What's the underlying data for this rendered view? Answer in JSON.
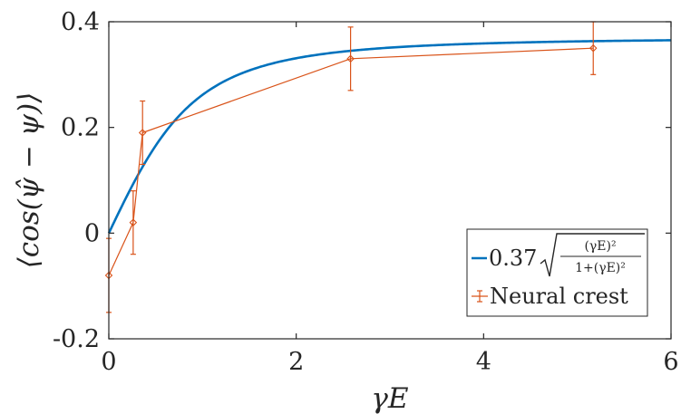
{
  "chart_data": {
    "type": "line",
    "xlabel": "γE",
    "ylabel": "⟨cos(ψ̂ − ψ)⟩",
    "xlim": [
      0,
      6
    ],
    "ylim": [
      -0.2,
      0.4
    ],
    "x_ticks": [
      0,
      2,
      4,
      6
    ],
    "x_tick_labels": [
      "0",
      "2",
      "4",
      "6"
    ],
    "y_ticks": [
      -0.2,
      0,
      0.2,
      0.4
    ],
    "y_tick_labels": [
      "-0.2",
      "0",
      "0.2",
      "0.4"
    ],
    "grid": false,
    "legend_position": "bottom-right",
    "series": [
      {
        "name": "0.37√((γE)²/(1+(γE)²))",
        "kind": "function",
        "amplitude": 0.37,
        "x_range": [
          0,
          6
        ],
        "color": "#0072BD"
      },
      {
        "name": "Neural crest",
        "kind": "errorbar",
        "color": "#D95319",
        "x": [
          0,
          0.26,
          0.36,
          2.58,
          5.17
        ],
        "y": [
          -0.08,
          0.02,
          0.19,
          0.33,
          0.35
        ],
        "yerr": [
          0.07,
          0.06,
          0.06,
          0.06,
          0.05
        ]
      }
    ],
    "legend": {
      "fit_coefficient": "0.37",
      "fit_numerator": "(γE)²",
      "fit_denominator": "1+(γE)²",
      "data_label": "Neural crest"
    }
  }
}
